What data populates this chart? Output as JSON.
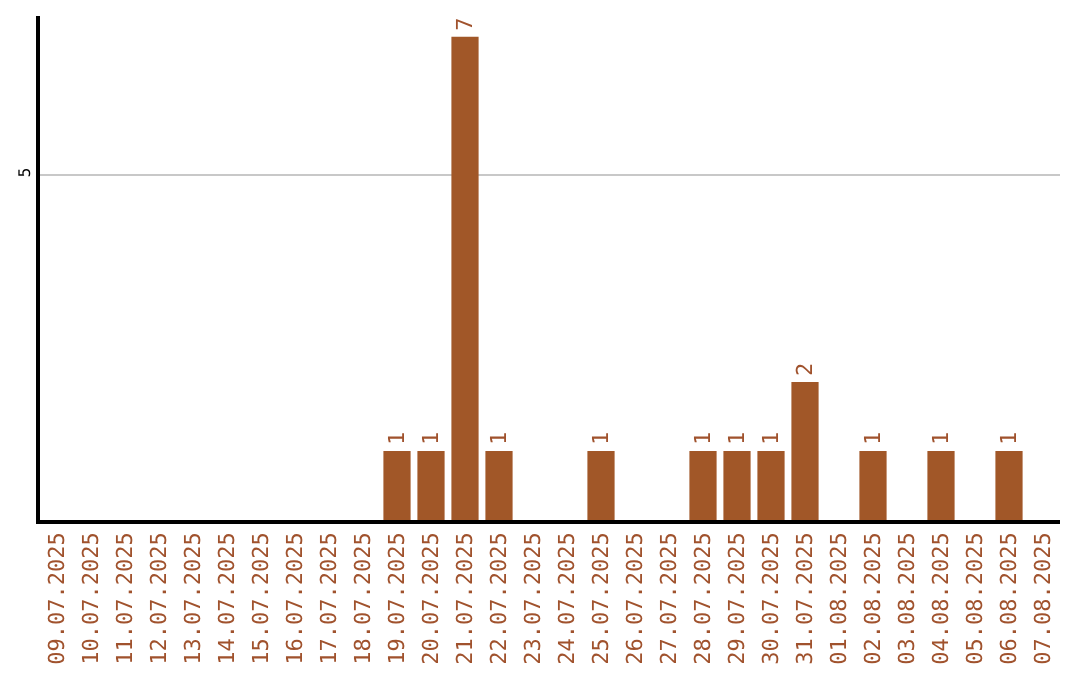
{
  "chart_data": {
    "type": "bar",
    "categories": [
      "09.07.2025",
      "10.07.2025",
      "11.07.2025",
      "12.07.2025",
      "13.07.2025",
      "14.07.2025",
      "15.07.2025",
      "16.07.2025",
      "17.07.2025",
      "18.07.2025",
      "19.07.2025",
      "20.07.2025",
      "21.07.2025",
      "22.07.2025",
      "23.07.2025",
      "24.07.2025",
      "25.07.2025",
      "26.07.2025",
      "27.07.2025",
      "28.07.2025",
      "29.07.2025",
      "30.07.2025",
      "31.07.2025",
      "01.08.2025",
      "02.08.2025",
      "03.08.2025",
      "04.08.2025",
      "05.08.2025",
      "06.08.2025",
      "07.08.2025"
    ],
    "values": [
      0,
      0,
      0,
      0,
      0,
      0,
      0,
      0,
      0,
      0,
      1,
      1,
      7,
      1,
      0,
      0,
      1,
      0,
      0,
      1,
      1,
      1,
      2,
      0,
      1,
      0,
      1,
      0,
      1,
      0
    ],
    "value_labels": [
      null,
      null,
      null,
      null,
      null,
      null,
      null,
      null,
      null,
      null,
      "1",
      "1",
      "7",
      "1",
      null,
      null,
      "1",
      null,
      null,
      "1",
      "1",
      "1",
      "2",
      null,
      "1",
      null,
      "1",
      null,
      "1",
      null
    ],
    "color": "#a15728",
    "ylim": [
      0,
      7.3
    ],
    "yticks": [
      5
    ],
    "grid": "y",
    "legend": false
  }
}
